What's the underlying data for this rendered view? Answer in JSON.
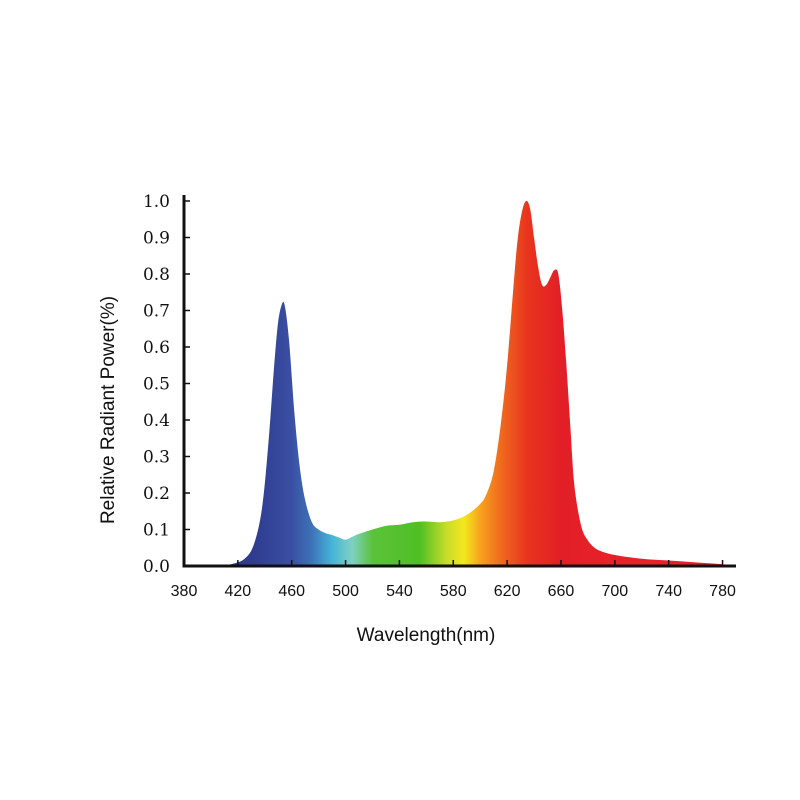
{
  "chart_data": {
    "type": "area",
    "title": "",
    "xlabel": "Wavelength(nm)",
    "ylabel": "Relative Radiant Power(%)",
    "xlim": [
      380,
      790
    ],
    "ylim": [
      0,
      1.0
    ],
    "x_ticks": [
      "380",
      "420",
      "460",
      "500",
      "540",
      "580",
      "620",
      "660",
      "700",
      "740",
      "780"
    ],
    "y_ticks": [
      "0.0",
      "0.1",
      "0.2",
      "0.3",
      "0.4",
      "0.5",
      "0.6",
      "0.7",
      "0.8",
      "0.9",
      "1.0"
    ],
    "grid": false,
    "fill": "wavelength-rainbow gradient",
    "series": [
      {
        "x": [
          405,
          415,
          425,
          432,
          438,
          443,
          447,
          450,
          453,
          455,
          458,
          462,
          466,
          470,
          475,
          480,
          485,
          490,
          495,
          500,
          505,
          510,
          520,
          530,
          540,
          550,
          560,
          570,
          580,
          590,
          600,
          605,
          610,
          615,
          620,
          625,
          628,
          631,
          634,
          637,
          640,
          643,
          646,
          649,
          652,
          655,
          658,
          661,
          664,
          667,
          670,
          675,
          680,
          685,
          690,
          700,
          720,
          740,
          760,
          780
        ],
        "y": [
          0.0,
          0.005,
          0.02,
          0.06,
          0.16,
          0.35,
          0.55,
          0.67,
          0.72,
          0.71,
          0.62,
          0.42,
          0.27,
          0.18,
          0.12,
          0.1,
          0.09,
          0.085,
          0.078,
          0.072,
          0.08,
          0.088,
          0.1,
          0.11,
          0.113,
          0.12,
          0.122,
          0.12,
          0.125,
          0.14,
          0.17,
          0.2,
          0.26,
          0.38,
          0.55,
          0.78,
          0.9,
          0.97,
          1.0,
          0.98,
          0.9,
          0.82,
          0.77,
          0.77,
          0.79,
          0.81,
          0.8,
          0.7,
          0.55,
          0.38,
          0.22,
          0.11,
          0.07,
          0.05,
          0.04,
          0.03,
          0.02,
          0.015,
          0.01,
          0.005
        ]
      }
    ],
    "colors": {
      "axis": "#111111",
      "gradient": [
        {
          "nm": 430,
          "color": "#2e3b8f"
        },
        {
          "nm": 460,
          "color": "#3a4fa3"
        },
        {
          "nm": 475,
          "color": "#3d73b8"
        },
        {
          "nm": 490,
          "color": "#45b5d8"
        },
        {
          "nm": 505,
          "color": "#7fd1c2"
        },
        {
          "nm": 520,
          "color": "#5bc23a"
        },
        {
          "nm": 555,
          "color": "#4fbf24"
        },
        {
          "nm": 575,
          "color": "#c8dc2a"
        },
        {
          "nm": 588,
          "color": "#f4e81e"
        },
        {
          "nm": 600,
          "color": "#f8a21e"
        },
        {
          "nm": 615,
          "color": "#f06b1e"
        },
        {
          "nm": 635,
          "color": "#e8341e"
        },
        {
          "nm": 660,
          "color": "#e21f26"
        },
        {
          "nm": 700,
          "color": "#e8202a"
        },
        {
          "nm": 780,
          "color": "#e8202a"
        }
      ]
    }
  }
}
